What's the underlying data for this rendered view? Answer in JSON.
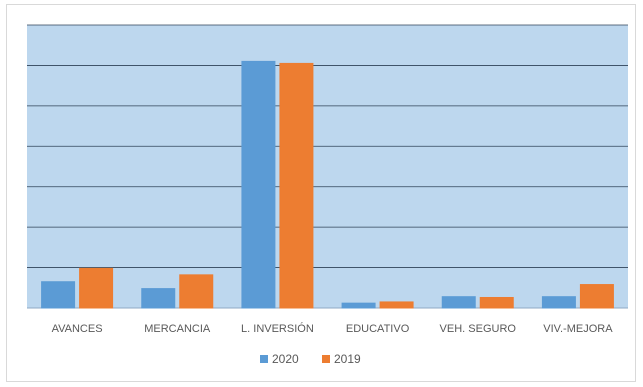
{
  "chart_data": {
    "type": "bar",
    "title": "",
    "xlabel": "",
    "ylabel": "",
    "categories": [
      "AVANCES",
      "MERCANCIA",
      "L. INVERSIÓN",
      "EDUCATIVO",
      "VEH. SEGURO",
      "VIV.-MEJORA"
    ],
    "series": [
      {
        "name": "2020",
        "color": "#5b9bd5",
        "values": [
          6.5,
          4.8,
          61.0,
          1.2,
          2.8,
          2.8
        ]
      },
      {
        "name": "2019",
        "color": "#ed7d31",
        "values": [
          9.8,
          8.2,
          60.5,
          1.5,
          2.6,
          5.8
        ]
      }
    ],
    "ylim": [
      0,
      70
    ],
    "gridline_count": 7,
    "grid": true,
    "plot_background": "#bdd7ee",
    "legend_position": "bottom"
  }
}
